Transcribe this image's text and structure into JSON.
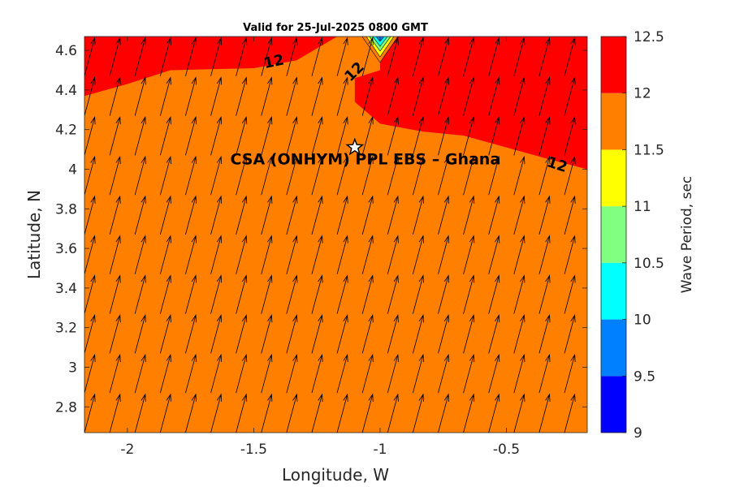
{
  "title": "Valid for 25-Jul-2025 0800 GMT",
  "chart_data": {
    "type": "heatmap",
    "title": "Valid for 25-Jul-2025 0800 GMT",
    "xlabel": "Longitude, W",
    "ylabel": "Latitude, N",
    "xlim": [
      -2.17,
      -0.18
    ],
    "ylim": [
      2.67,
      4.67
    ],
    "x_ticks": [
      "-2",
      "-1.5",
      "-1",
      "-0.5"
    ],
    "x_tick_values": [
      -2,
      -1.5,
      -1,
      -0.5
    ],
    "y_ticks": [
      "2.8",
      "3",
      "3.2",
      "3.4",
      "3.6",
      "3.8",
      "4",
      "4.2",
      "4.4",
      "4.6"
    ],
    "y_tick_values": [
      2.8,
      3.0,
      3.2,
      3.4,
      3.6,
      3.8,
      4.0,
      4.2,
      4.4,
      4.6
    ],
    "colorbar": {
      "label": "Wave Period, sec",
      "ticks": [
        "9",
        "9.5",
        "10",
        "10.5",
        "11",
        "11.5",
        "12",
        "12.5"
      ],
      "tick_values": [
        9,
        9.5,
        10,
        10.5,
        11,
        11.5,
        12,
        12.5
      ],
      "bands": [
        {
          "from": 9.0,
          "to": 9.5,
          "color": "#0000ff"
        },
        {
          "from": 9.5,
          "to": 10.0,
          "color": "#0080ff"
        },
        {
          "from": 10.0,
          "to": 10.5,
          "color": "#00ffff"
        },
        {
          "from": 10.5,
          "to": 11.0,
          "color": "#80ff80"
        },
        {
          "from": 11.0,
          "to": 11.5,
          "color": "#ffff00"
        },
        {
          "from": 11.5,
          "to": 12.0,
          "color": "#ff8000"
        },
        {
          "from": 12.0,
          "to": 12.5,
          "color": "#ff0000"
        }
      ]
    },
    "background_period_band": "11.5-12",
    "regions_above_12": [
      {
        "name": "north-west",
        "boundary": [
          [
            -2.17,
            4.37
          ],
          [
            -2.0,
            4.43
          ],
          [
            -1.83,
            4.5
          ],
          [
            -1.5,
            4.51
          ],
          [
            -1.33,
            4.55
          ],
          [
            -1.17,
            4.67
          ]
        ]
      },
      {
        "name": "north-east",
        "boundary": [
          [
            -1.0,
            4.67
          ],
          [
            -1.0,
            4.5
          ],
          [
            -1.1,
            4.46
          ],
          [
            -1.1,
            4.34
          ],
          [
            -1.0,
            4.23
          ],
          [
            -0.83,
            4.19
          ],
          [
            -0.67,
            4.17
          ],
          [
            -0.5,
            4.11
          ],
          [
            -0.33,
            4.05
          ],
          [
            -0.18,
            4.0
          ],
          [
            -0.18,
            4.67
          ]
        ]
      }
    ],
    "low_period_spot": {
      "lon": -1.0,
      "lat": 4.67,
      "min_period_band": "9.5-10"
    },
    "contour_labels": [
      {
        "text": "12",
        "lon": -1.42,
        "lat": 4.54
      },
      {
        "text": "12",
        "lon": -1.1,
        "lat": 4.49
      },
      {
        "text": "12",
        "lon": -0.3,
        "lat": 4.02
      }
    ],
    "site": {
      "name": "CSA (ONHYM) PPL EBS  – Ghana",
      "lon": -1.1,
      "lat": 4.11
    },
    "wave_direction": {
      "grid_lon_start": -2.17,
      "grid_lon_step": 0.1,
      "grid_lat_start": 2.67,
      "grid_lat_step": 0.2,
      "direction_from_north_deg": 15,
      "arrow_length_deg": 0.2
    }
  }
}
